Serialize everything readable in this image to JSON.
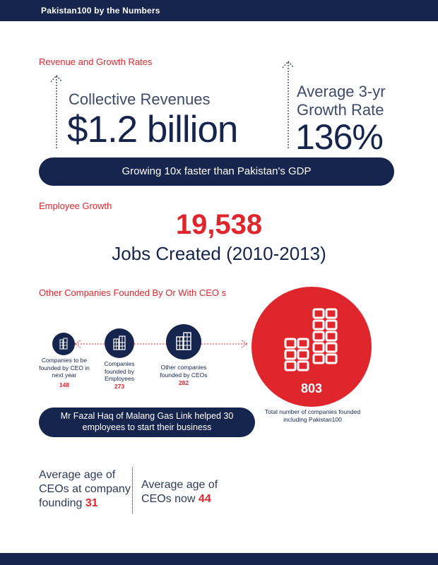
{
  "header": {
    "title": "Pakistan100 by the Numbers"
  },
  "colors": {
    "navy": "#16254e",
    "red": "#e0262d"
  },
  "revenue_section": {
    "heading": "Revenue and Growth Rates",
    "revenues_label": "Collective Revenues",
    "revenues_value": "$1.2 billion",
    "growth_label": "Average 3-yr Growth Rate",
    "growth_value": "136%",
    "banner": "Growing 10x faster than Pakistan's GDP"
  },
  "employee_section": {
    "heading": "Employee Growth",
    "jobs_value": "19,538",
    "jobs_label": "Jobs Created (2010-2013)"
  },
  "companies_section": {
    "heading": "Other Companies Founded By Or With CEO s",
    "items": [
      {
        "label": "Companies to be founded by CEO in next year",
        "value": "148",
        "icon": "building-icon"
      },
      {
        "label": "Companies founded by Employees",
        "value": "273",
        "icon": "building-icon"
      },
      {
        "label": "Other companies founded by CEOs",
        "value": "282",
        "icon": "building-icon"
      }
    ],
    "total_value": "803",
    "total_label": "Total number of companies founded including Pakistan100",
    "banner": "Mr Fazal Haq of Malang Gas Link helped 30 employees to start their business"
  },
  "age_section": {
    "at_founding_label": "Average age of CEOs at company founding",
    "at_founding_value": "31",
    "now_label": "Average age of CEOs now",
    "now_value": "44"
  }
}
